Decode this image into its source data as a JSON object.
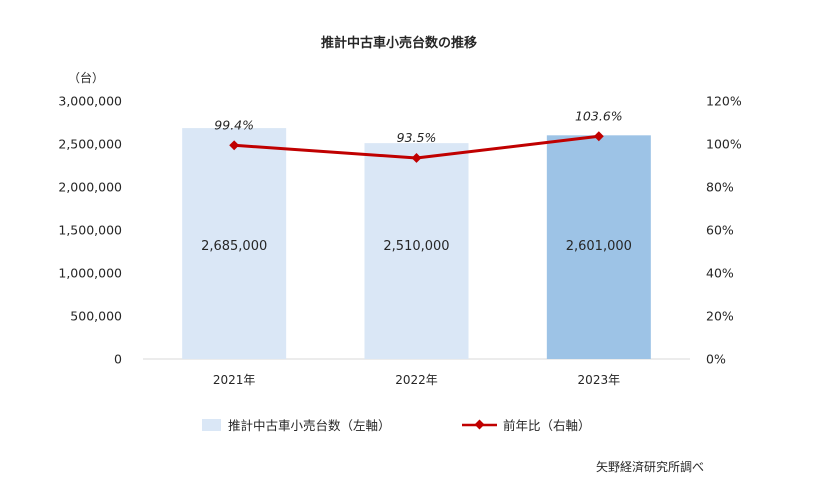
{
  "chart_data": {
    "type": "bar",
    "title": "推計中古車小売台数の推移",
    "categories": [
      "2021年",
      "2022年",
      "2023年"
    ],
    "series": [
      {
        "name": "推計中古車小売台数（左軸）",
        "type": "bar",
        "axis": "left",
        "values": [
          2685000,
          2510000,
          2601000
        ],
        "labels": [
          "2,685,000",
          "2,510,000",
          "2,601,000"
        ],
        "colors": [
          "#dae7f6",
          "#dae7f6",
          "#9dc3e6"
        ]
      },
      {
        "name": "前年比（右軸）",
        "type": "line",
        "axis": "right",
        "values": [
          99.4,
          93.5,
          103.6
        ],
        "labels": [
          "99.4%",
          "93.5%",
          "103.6%"
        ],
        "color": "#c00000"
      }
    ],
    "y_left": {
      "unit": "（台）",
      "ylim": [
        0,
        3000000
      ],
      "ticks": [
        "0",
        "500,000",
        "1,000,000",
        "1,500,000",
        "2,000,000",
        "2,500,000",
        "3,000,000"
      ]
    },
    "y_right": {
      "ylim": [
        0,
        120
      ],
      "ticks": [
        "0%",
        "20%",
        "40%",
        "60%",
        "80%",
        "100%",
        "120%"
      ]
    },
    "grid": false,
    "legend_position": "bottom"
  },
  "source": "矢野経済研究所調べ"
}
